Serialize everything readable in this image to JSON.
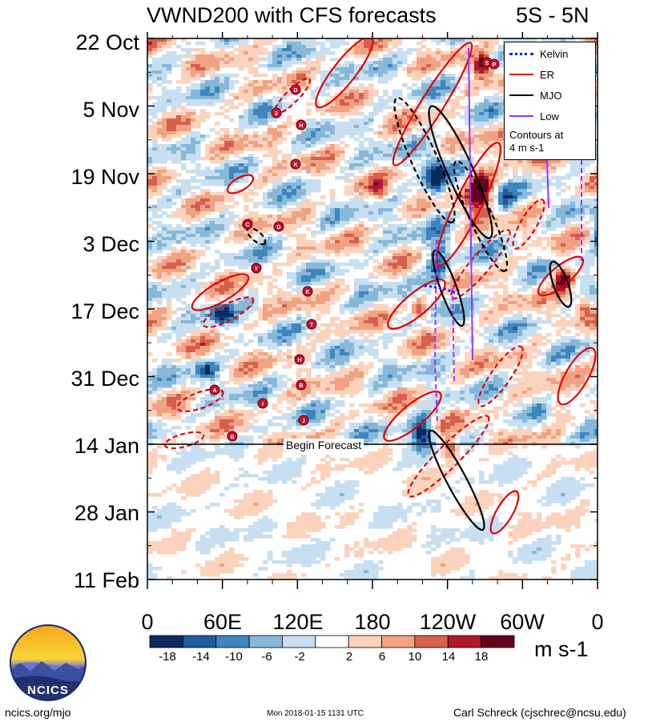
{
  "chart_data": {
    "type": "heatmap",
    "title_left": "VWND200 with CFS forecasts",
    "title_right": "5S - 5N",
    "x_ticks": [
      "0",
      "60E",
      "120E",
      "180",
      "120W",
      "60W",
      "0"
    ],
    "y_ticks": [
      "22 Oct",
      "5 Nov",
      "19 Nov",
      "3 Dec",
      "17 Dec",
      "31 Dec",
      "14 Jan",
      "28 Jan",
      "11 Feb"
    ],
    "forecast_label": "Begin Forecast",
    "forecast_start": "14 Jan",
    "colorbar": {
      "ticks": [
        "-18",
        "-14",
        "-10",
        "-6",
        "-2",
        "2",
        "6",
        "10",
        "14",
        "18"
      ],
      "units": "m s-1",
      "colors": [
        "#0d2a5e",
        "#1f5d9c",
        "#3f86bf",
        "#87b8d8",
        "#c7dff0",
        "#ffffff",
        "#fbd3bd",
        "#f1a283",
        "#d6604d",
        "#b2182b",
        "#67001f"
      ]
    },
    "legend": [
      {
        "label": "Kelvin",
        "color": "#1a1aff"
      },
      {
        "label": "ER",
        "color": "#e60000"
      },
      {
        "label": "MJO",
        "color": "#000000"
      },
      {
        "label": "Low",
        "color": "#9933ff"
      }
    ],
    "legend_note": [
      "Contours at",
      "4 m s-1"
    ],
    "cyclone_labels": [
      "D",
      "2",
      "H",
      "K",
      "C",
      "D",
      "Y",
      "K",
      "T",
      "H",
      "A",
      "B",
      "I",
      "J",
      "B",
      "S",
      "P"
    ]
  },
  "footer": {
    "left": "ncics.org/mjo",
    "middle": "Mon 2018-01-15 1131 UTC",
    "right": "Carl Schreck (cjschrec@ncsu.edu)"
  },
  "logo": {
    "text": "NCICS"
  }
}
